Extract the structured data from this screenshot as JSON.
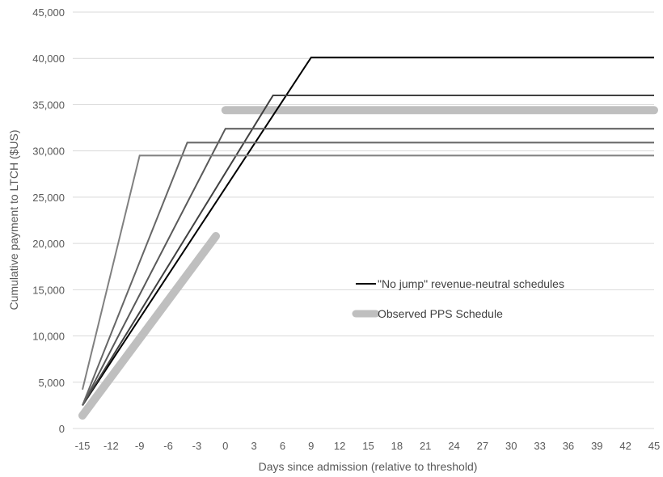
{
  "chart_data": {
    "type": "line",
    "title": "",
    "xlabel": "Days since admission (relative to threshold)",
    "ylabel": "Cumulative payment to LTCH ($US)",
    "xlim": [
      -15,
      45
    ],
    "ylim": [
      0,
      45000
    ],
    "x_ticks": [
      -15,
      -12,
      -9,
      -6,
      -3,
      0,
      3,
      6,
      9,
      12,
      15,
      18,
      21,
      24,
      27,
      30,
      33,
      36,
      39,
      42,
      45
    ],
    "y_ticks": [
      0,
      5000,
      10000,
      15000,
      20000,
      25000,
      30000,
      35000,
      40000,
      45000
    ],
    "y_tick_labels": [
      "0",
      "5,000",
      "10,000",
      "15,000",
      "20,000",
      "25,000",
      "30,000",
      "35,000",
      "40,000",
      "45,000"
    ],
    "grid": "horizontal",
    "legend_position": "right-middle",
    "legend": [
      {
        "label": "\"No jump\" revenue-neutral schedules",
        "style": "no-jump"
      },
      {
        "label": "Observed PPS Schedule",
        "style": "observed"
      }
    ],
    "series": [
      {
        "style": "no-jump",
        "color": "#000000",
        "points": [
          [
            -15,
            2500
          ],
          [
            9,
            40100
          ],
          [
            45,
            40100
          ]
        ]
      },
      {
        "style": "no-jump",
        "color": "#404040",
        "points": [
          [
            -15,
            2500
          ],
          [
            5,
            36000
          ],
          [
            45,
            36000
          ]
        ]
      },
      {
        "style": "no-jump",
        "color": "#595959",
        "points": [
          [
            -15,
            2500
          ],
          [
            0,
            32400
          ],
          [
            45,
            32400
          ]
        ]
      },
      {
        "style": "no-jump",
        "color": "#666666",
        "points": [
          [
            -15,
            2500
          ],
          [
            -4,
            30900
          ],
          [
            45,
            30900
          ]
        ]
      },
      {
        "style": "no-jump",
        "color": "#808080",
        "points": [
          [
            -15,
            4200
          ],
          [
            -9,
            29500
          ],
          [
            45,
            29500
          ]
        ]
      },
      {
        "style": "observed",
        "color": "#bfbfbf",
        "segments": [
          [
            [
              -15,
              1400
            ],
            [
              -1,
              20800
            ]
          ],
          [
            [
              0,
              34400
            ],
            [
              45,
              34400
            ]
          ]
        ]
      }
    ]
  }
}
